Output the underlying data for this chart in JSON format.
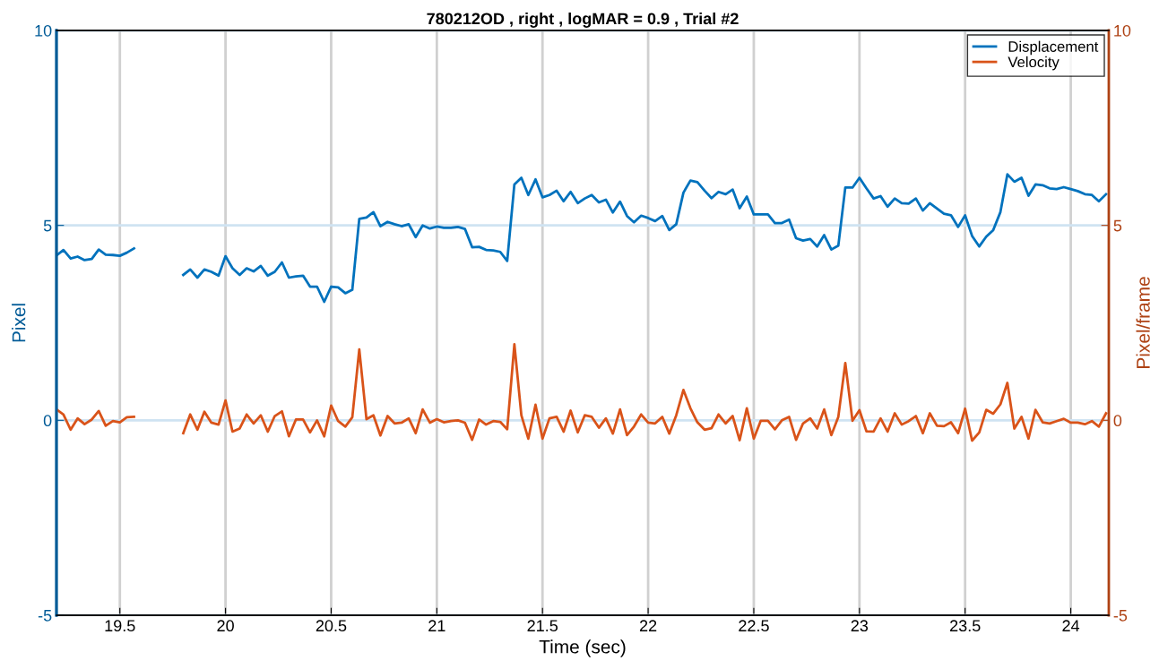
{
  "chart_data": {
    "type": "line",
    "title": "780212OD , right , logMAR = 0.9 , Trial #2",
    "xlabel": "Time (sec)",
    "ylabel": "Pixel",
    "y2label": "Pixel/frame",
    "x": [
      19.2,
      19.233,
      19.267,
      19.3,
      19.333,
      19.367,
      19.4,
      19.433,
      19.467,
      19.5,
      19.533,
      19.567,
      19.6,
      19.633,
      19.667,
      19.7,
      19.733,
      19.767,
      19.8,
      19.833,
      19.867,
      19.9,
      19.933,
      19.967,
      20.0,
      20.033,
      20.067,
      20.1,
      20.133,
      20.167,
      20.2,
      20.233,
      20.267,
      20.3,
      20.333,
      20.367,
      20.4,
      20.433,
      20.467,
      20.5,
      20.533,
      20.567,
      20.6,
      20.633,
      20.667,
      20.7,
      20.733,
      20.767,
      20.8,
      20.833,
      20.867,
      20.9,
      20.933,
      20.967,
      21.0,
      21.033,
      21.067,
      21.1,
      21.133,
      21.167,
      21.2,
      21.233,
      21.267,
      21.3,
      21.333,
      21.367,
      21.4,
      21.433,
      21.467,
      21.5,
      21.533,
      21.567,
      21.6,
      21.633,
      21.667,
      21.7,
      21.733,
      21.767,
      21.8,
      21.833,
      21.867,
      21.9,
      21.933,
      21.967,
      22.0,
      22.033,
      22.067,
      22.1,
      22.133,
      22.167,
      22.2,
      22.233,
      22.267,
      22.3,
      22.333,
      22.367,
      22.4,
      22.433,
      22.467,
      22.5,
      22.533,
      22.567,
      22.6,
      22.633,
      22.667,
      22.7,
      22.733,
      22.767,
      22.8,
      22.833,
      22.867,
      22.9,
      22.933,
      22.967,
      23.0,
      23.033,
      23.067,
      23.1,
      23.133,
      23.167,
      23.2,
      23.233,
      23.267,
      23.3,
      23.333,
      23.367,
      23.4,
      23.433,
      23.467,
      23.5,
      23.533,
      23.567,
      23.6,
      23.633,
      23.667,
      23.7,
      23.733,
      23.767,
      23.8,
      23.833,
      23.867,
      23.9,
      23.933,
      23.967,
      24.0,
      24.033,
      24.067,
      24.1,
      24.133,
      24.167
    ],
    "series": [
      {
        "name": "Displacement",
        "color": "#0072bd",
        "values": [
          4.23,
          4.37,
          4.15,
          4.2,
          4.11,
          4.14,
          4.38,
          4.25,
          4.24,
          4.22,
          4.3,
          4.41,
          null,
          null,
          null,
          null,
          null,
          null,
          3.73,
          3.87,
          3.66,
          3.87,
          3.81,
          3.71,
          4.21,
          3.9,
          3.73,
          3.9,
          3.82,
          3.96,
          3.71,
          3.81,
          4.05,
          3.66,
          3.69,
          3.71,
          3.43,
          3.43,
          3.04,
          3.43,
          3.41,
          3.26,
          3.35,
          5.17,
          5.2,
          5.34,
          4.98,
          5.09,
          5.03,
          4.98,
          5.03,
          4.7,
          5.0,
          4.92,
          4.97,
          4.94,
          4.94,
          4.96,
          4.91,
          4.44,
          4.45,
          4.37,
          4.36,
          4.32,
          4.09,
          6.05,
          6.22,
          5.78,
          6.18,
          5.72,
          5.78,
          5.89,
          5.62,
          5.86,
          5.57,
          5.69,
          5.78,
          5.59,
          5.66,
          5.33,
          5.61,
          5.24,
          5.08,
          5.25,
          5.19,
          5.11,
          5.24,
          4.88,
          5.03,
          5.84,
          6.15,
          6.11,
          5.89,
          5.7,
          5.86,
          5.8,
          5.92,
          5.44,
          5.74,
          5.28,
          5.28,
          5.28,
          5.06,
          5.06,
          5.15,
          4.67,
          4.61,
          4.65,
          4.46,
          4.75,
          4.38,
          4.48,
          5.97,
          5.97,
          6.22,
          5.95,
          5.69,
          5.75,
          5.48,
          5.69,
          5.57,
          5.56,
          5.69,
          5.38,
          5.57,
          5.43,
          5.3,
          5.26,
          4.96,
          5.26,
          4.73,
          4.46,
          4.71,
          4.88,
          5.34,
          6.31,
          6.12,
          6.22,
          5.76,
          6.05,
          6.03,
          5.95,
          5.93,
          5.98,
          5.93,
          5.88,
          5.8,
          5.78,
          5.62,
          5.8
        ]
      },
      {
        "name": "Velocity",
        "color": "#d95319",
        "axis": "y2",
        "values": [
          0.28,
          0.15,
          -0.24,
          0.05,
          -0.1,
          0.02,
          0.24,
          -0.14,
          -0.02,
          -0.05,
          0.08,
          0.09,
          null,
          null,
          null,
          null,
          null,
          null,
          -0.33,
          0.15,
          -0.24,
          0.22,
          -0.06,
          -0.11,
          0.51,
          -0.29,
          -0.21,
          0.15,
          -0.08,
          0.13,
          -0.29,
          0.11,
          0.23,
          -0.41,
          0.02,
          0.02,
          -0.31,
          0.0,
          -0.41,
          0.38,
          -0.02,
          -0.16,
          0.08,
          1.82,
          0.03,
          0.13,
          -0.39,
          0.11,
          -0.08,
          -0.06,
          0.05,
          -0.33,
          0.28,
          -0.06,
          0.03,
          -0.05,
          -0.02,
          0.0,
          -0.06,
          -0.5,
          0.02,
          -0.11,
          -0.02,
          -0.04,
          -0.23,
          1.95,
          0.13,
          -0.47,
          0.4,
          -0.47,
          0.05,
          0.09,
          -0.29,
          0.25,
          -0.31,
          0.13,
          0.09,
          -0.19,
          0.05,
          -0.34,
          0.28,
          -0.38,
          -0.16,
          0.15,
          -0.06,
          -0.08,
          0.09,
          -0.34,
          0.13,
          0.78,
          0.31,
          -0.05,
          -0.24,
          -0.2,
          0.15,
          -0.08,
          0.11,
          -0.51,
          0.31,
          -0.47,
          -0.01,
          -0.01,
          -0.23,
          0.0,
          0.09,
          -0.5,
          -0.08,
          0.05,
          -0.21,
          0.28,
          -0.38,
          0.09,
          1.47,
          -0.01,
          0.26,
          -0.28,
          -0.29,
          0.05,
          -0.29,
          0.18,
          -0.11,
          -0.02,
          0.11,
          -0.33,
          0.18,
          -0.14,
          -0.15,
          -0.05,
          -0.33,
          0.3,
          -0.52,
          -0.31,
          0.27,
          0.17,
          0.41,
          0.96,
          -0.21,
          0.09,
          -0.47,
          0.27,
          -0.05,
          -0.08,
          -0.02,
          0.04,
          -0.06,
          -0.06,
          -0.1,
          -0.02,
          -0.16,
          0.18
        ]
      }
    ],
    "xlim": [
      19.2,
      24.18
    ],
    "xticks": [
      19.5,
      20,
      20.5,
      21,
      21.5,
      22,
      22.5,
      23,
      23.5,
      24
    ],
    "ylim": [
      -5,
      10
    ],
    "yticks": [
      -5,
      0,
      5,
      10
    ],
    "y2lim": [
      -5,
      10
    ],
    "y2ticks": [
      -5,
      0,
      5,
      10
    ],
    "grid": true,
    "legend": "top right",
    "marker": "none",
    "line_style": "solid"
  }
}
